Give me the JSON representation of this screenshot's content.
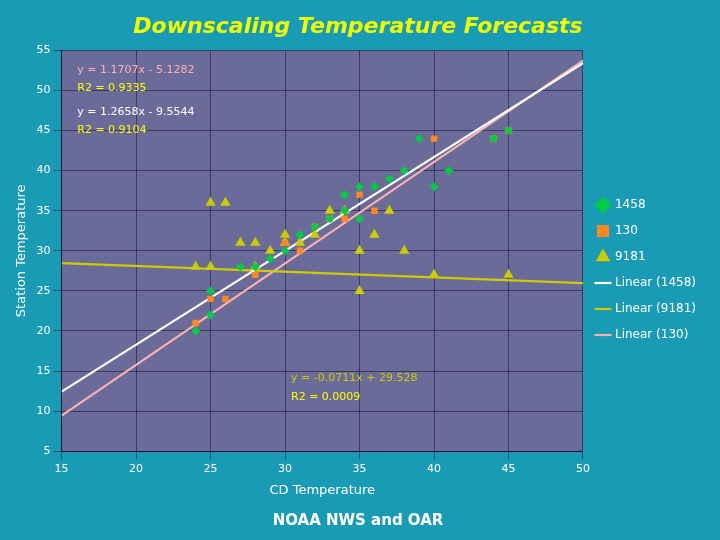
{
  "chart_data": {
    "type": "scatter",
    "title": "Downscaling Temperature Forecasts",
    "subtitle": "NOAA NWS and OAR",
    "x_label": "CD Temperature",
    "y_label": "Station Temperature",
    "xlim": [
      15,
      50
    ],
    "ylim": [
      5,
      55
    ],
    "xticks": [
      15,
      20,
      25,
      30,
      35,
      40,
      45,
      50
    ],
    "yticks": [
      5,
      10,
      15,
      20,
      25,
      30,
      35,
      40,
      45,
      50,
      55
    ],
    "grid": true,
    "legend": "right",
    "series": [
      {
        "name": "1458",
        "type": "scatter",
        "color": "#00CC44",
        "marker": "diamond",
        "x": [
          24,
          25,
          25,
          27,
          28,
          29,
          30,
          31,
          32,
          33,
          34,
          34,
          35,
          35,
          36,
          37,
          38,
          39,
          40,
          41,
          44,
          45
        ],
        "values": [
          20,
          22,
          25,
          28,
          28,
          29,
          30,
          32,
          33,
          34,
          35,
          37,
          34,
          38,
          38,
          39,
          40,
          44,
          38,
          40,
          44,
          45
        ]
      },
      {
        "name": "130",
        "type": "scatter",
        "color": "#FF8822",
        "marker": "square",
        "x": [
          24,
          25,
          26,
          28,
          30,
          31,
          32,
          33,
          34,
          35,
          36,
          40,
          44,
          45
        ],
        "values": [
          21,
          24,
          24,
          27,
          31,
          30,
          33,
          34,
          34,
          37,
          35,
          44,
          44,
          45
        ]
      },
      {
        "name": "9181",
        "type": "scatter",
        "color": "#CCCC00",
        "marker": "triangle",
        "x": [
          24,
          25,
          25,
          26,
          27,
          28,
          28,
          29,
          30,
          30,
          31,
          32,
          33,
          34,
          35,
          35,
          36,
          37,
          38,
          40,
          45
        ],
        "values": [
          28,
          28,
          36,
          36,
          31,
          31,
          28,
          30,
          32,
          31,
          31,
          32,
          35,
          35,
          25,
          30,
          32,
          35,
          30,
          27,
          27
        ]
      },
      {
        "name": "Linear (1458)",
        "type": "line",
        "color": "#FFFFFF",
        "line_style": "solid",
        "x": [
          15,
          50
        ],
        "values": [
          12.4323,
          53.4068
        ]
      },
      {
        "name": "Linear (9181)",
        "type": "line",
        "color": "#CCCC00",
        "line_style": "solid",
        "x": [
          15,
          50
        ],
        "values": [
          28.4615,
          25.973
        ]
      },
      {
        "name": "Linear (130)",
        "type": "line",
        "color": "#FFB0B0",
        "line_style": "solid",
        "x": [
          15,
          50
        ],
        "values": [
          9.4326,
          53.7356
        ]
      }
    ],
    "annotations": [
      {
        "text": "y = 1.1707x - 5.1282",
        "color": "#FFB0B0"
      },
      {
        "text": "R2 = 0.9335",
        "color": "#FFFF00"
      },
      {
        "text": "y = 1.2658x - 9.5544",
        "color": "#FFFFFF"
      },
      {
        "text": "R2 = 0.9104",
        "color": "#FFFF00"
      },
      {
        "text": "y = -0.0711x + 29.528",
        "color": "#CCCC00"
      },
      {
        "text": "R2 = 0.0009",
        "color": "#FFFF00"
      }
    ]
  }
}
